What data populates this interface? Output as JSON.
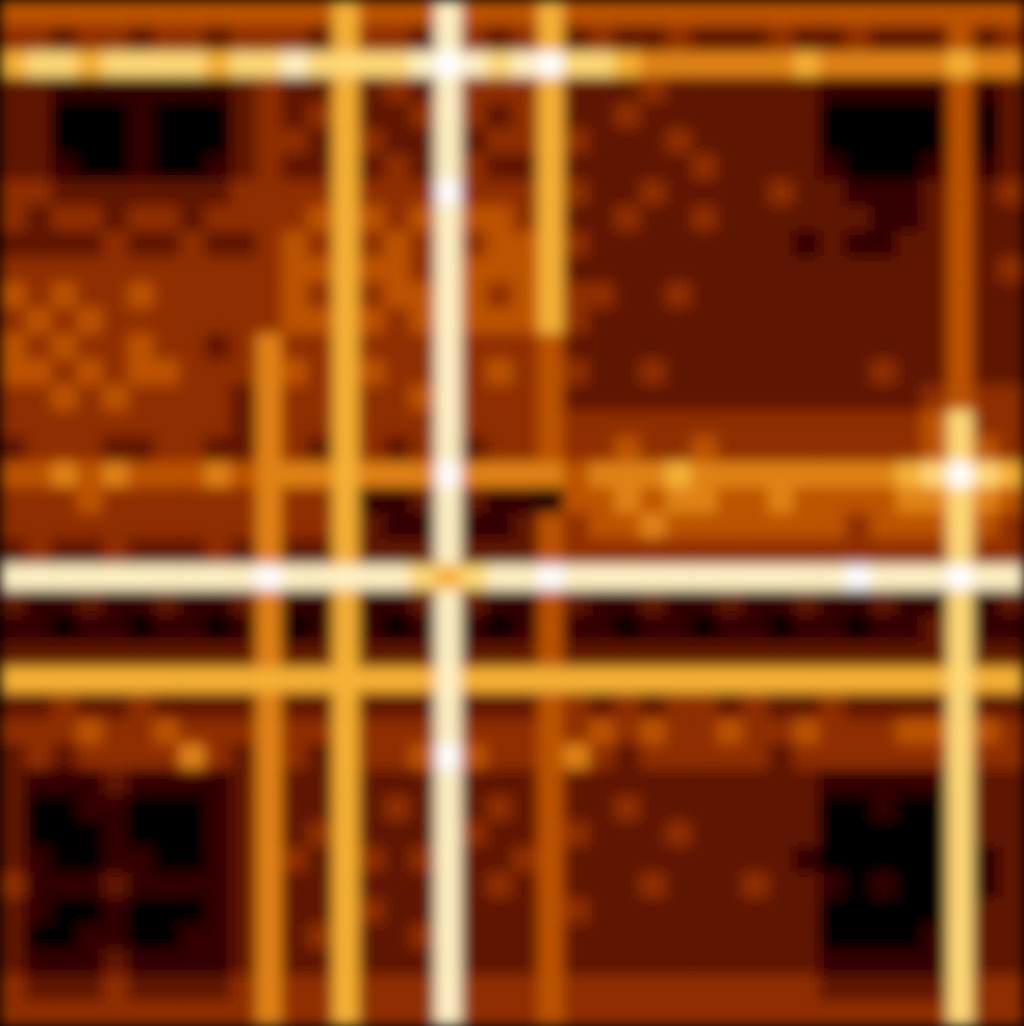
{
  "chart_data": {
    "type": "heatmap",
    "tick_labels": false,
    "cells": [
      [
        4,
        4,
        4,
        4,
        4,
        4,
        4,
        4,
        4,
        4,
        4,
        4,
        4,
        6,
        4,
        4,
        4,
        8,
        4,
        4,
        4,
        6,
        4,
        4,
        4,
        4,
        4,
        4,
        4,
        4,
        4,
        4,
        4,
        4,
        4,
        4,
        4,
        4,
        4,
        4
      ],
      [
        3,
        3,
        2,
        3,
        3,
        2,
        3,
        3,
        2,
        3,
        3,
        3,
        2,
        6,
        3,
        3,
        2,
        8,
        3,
        2,
        3,
        6,
        2,
        3,
        2,
        2,
        3,
        2,
        2,
        2,
        3,
        2,
        2,
        3,
        2,
        2,
        2,
        4,
        2,
        3
      ],
      [
        6,
        7,
        7,
        6,
        7,
        7,
        7,
        7,
        6,
        7,
        7,
        8,
        7,
        7,
        7,
        7,
        8,
        9,
        8,
        7,
        8,
        9,
        7,
        7,
        6,
        5,
        5,
        5,
        5,
        5,
        5,
        6,
        5,
        5,
        5,
        5,
        5,
        6,
        5,
        5
      ],
      [
        2,
        2,
        1,
        1,
        1,
        1,
        1,
        1,
        1,
        2,
        3,
        2,
        2,
        6,
        2,
        3,
        2,
        8,
        3,
        3,
        3,
        6,
        2,
        2,
        2,
        3,
        2,
        2,
        2,
        2,
        2,
        2,
        1,
        1,
        1,
        1,
        1,
        4,
        1,
        2
      ],
      [
        2,
        2,
        0,
        0,
        0,
        1,
        0,
        0,
        0,
        2,
        3,
        2,
        3,
        6,
        2,
        2,
        3,
        8,
        3,
        2,
        3,
        6,
        2,
        2,
        3,
        2,
        2,
        2,
        2,
        2,
        2,
        2,
        0,
        0,
        0,
        0,
        0,
        4,
        0,
        2
      ],
      [
        2,
        2,
        0,
        0,
        0,
        1,
        0,
        0,
        0,
        2,
        3,
        3,
        2,
        6,
        3,
        2,
        2,
        8,
        2,
        3,
        3,
        6,
        3,
        2,
        2,
        2,
        3,
        2,
        2,
        2,
        2,
        2,
        0,
        0,
        0,
        0,
        0,
        4,
        0,
        2
      ],
      [
        2,
        2,
        1,
        0,
        0,
        1,
        0,
        0,
        1,
        2,
        3,
        2,
        2,
        6,
        2,
        3,
        2,
        8,
        3,
        2,
        2,
        6,
        2,
        2,
        2,
        2,
        2,
        3,
        2,
        2,
        2,
        2,
        1,
        0,
        0,
        0,
        1,
        4,
        1,
        2
      ],
      [
        3,
        3,
        2,
        2,
        2,
        2,
        2,
        2,
        2,
        3,
        3,
        3,
        3,
        6,
        3,
        3,
        3,
        9,
        3,
        3,
        3,
        6,
        3,
        2,
        2,
        3,
        2,
        2,
        2,
        2,
        3,
        2,
        2,
        1,
        1,
        1,
        2,
        4,
        2,
        3
      ],
      [
        3,
        2,
        3,
        3,
        2,
        3,
        3,
        2,
        3,
        3,
        3,
        3,
        4,
        6,
        4,
        3,
        4,
        8,
        4,
        4,
        3,
        6,
        2,
        2,
        3,
        2,
        2,
        3,
        2,
        2,
        2,
        2,
        2,
        2,
        1,
        1,
        2,
        4,
        2,
        2
      ],
      [
        2,
        2,
        2,
        2,
        3,
        2,
        2,
        3,
        2,
        2,
        3,
        4,
        3,
        6,
        3,
        4,
        3,
        8,
        3,
        4,
        4,
        6,
        3,
        2,
        2,
        2,
        2,
        2,
        2,
        2,
        2,
        1,
        2,
        1,
        1,
        2,
        2,
        4,
        2,
        2
      ],
      [
        3,
        3,
        3,
        3,
        3,
        3,
        3,
        3,
        3,
        3,
        3,
        4,
        4,
        6,
        4,
        4,
        3,
        8,
        4,
        4,
        4,
        6,
        2,
        2,
        2,
        2,
        2,
        2,
        2,
        2,
        2,
        2,
        2,
        2,
        2,
        2,
        2,
        4,
        2,
        3
      ],
      [
        4,
        3,
        4,
        3,
        3,
        4,
        3,
        3,
        3,
        3,
        3,
        4,
        3,
        6,
        3,
        4,
        4,
        8,
        4,
        3,
        4,
        6,
        3,
        3,
        2,
        2,
        3,
        2,
        2,
        2,
        2,
        2,
        2,
        2,
        2,
        2,
        2,
        4,
        2,
        2
      ],
      [
        3,
        4,
        3,
        4,
        3,
        3,
        3,
        3,
        3,
        3,
        3,
        4,
        4,
        6,
        4,
        3,
        4,
        8,
        4,
        4,
        4,
        6,
        3,
        2,
        2,
        2,
        2,
        2,
        2,
        2,
        2,
        2,
        2,
        2,
        2,
        2,
        2,
        4,
        2,
        2
      ],
      [
        4,
        3,
        4,
        3,
        3,
        4,
        3,
        3,
        2,
        3,
        5,
        3,
        3,
        6,
        3,
        3,
        3,
        8,
        3,
        3,
        3,
        4,
        2,
        2,
        2,
        2,
        2,
        2,
        2,
        2,
        2,
        2,
        2,
        2,
        2,
        2,
        2,
        4,
        2,
        2
      ],
      [
        4,
        4,
        3,
        4,
        3,
        4,
        4,
        3,
        3,
        3,
        5,
        4,
        3,
        6,
        4,
        3,
        3,
        8,
        3,
        4,
        3,
        4,
        3,
        2,
        2,
        3,
        2,
        2,
        2,
        2,
        2,
        2,
        2,
        2,
        3,
        2,
        2,
        4,
        2,
        2
      ],
      [
        3,
        3,
        4,
        3,
        4,
        3,
        3,
        3,
        3,
        2,
        5,
        3,
        3,
        6,
        3,
        3,
        4,
        8,
        3,
        3,
        3,
        4,
        2,
        2,
        2,
        2,
        2,
        2,
        2,
        2,
        2,
        2,
        2,
        2,
        2,
        2,
        3,
        4,
        3,
        3
      ],
      [
        3,
        3,
        3,
        3,
        3,
        3,
        3,
        3,
        3,
        2,
        5,
        3,
        3,
        6,
        3,
        3,
        3,
        8,
        3,
        3,
        3,
        4,
        3,
        3,
        3,
        3,
        3,
        3,
        3,
        3,
        3,
        3,
        3,
        3,
        3,
        3,
        4,
        7,
        3,
        3
      ],
      [
        2,
        3,
        3,
        3,
        2,
        2,
        3,
        3,
        2,
        2,
        5,
        3,
        2,
        6,
        3,
        2,
        3,
        8,
        2,
        3,
        3,
        4,
        3,
        3,
        4,
        3,
        3,
        4,
        3,
        3,
        3,
        3,
        3,
        3,
        3,
        3,
        4,
        7,
        4,
        3
      ],
      [
        4,
        4,
        5,
        4,
        5,
        4,
        4,
        4,
        5,
        4,
        5,
        5,
        5,
        6,
        5,
        5,
        5,
        9,
        5,
        5,
        5,
        5,
        4,
        5,
        5,
        5,
        6,
        5,
        5,
        5,
        5,
        5,
        5,
        5,
        5,
        6,
        7,
        9,
        7,
        6
      ],
      [
        3,
        3,
        3,
        4,
        3,
        3,
        3,
        3,
        3,
        3,
        5,
        3,
        3,
        6,
        1,
        1,
        2,
        8,
        2,
        1,
        1,
        0,
        4,
        4,
        5,
        4,
        5,
        5,
        4,
        4,
        5,
        4,
        4,
        4,
        4,
        5,
        5,
        7,
        5,
        4
      ],
      [
        3,
        3,
        3,
        3,
        3,
        3,
        3,
        3,
        3,
        3,
        5,
        3,
        3,
        6,
        2,
        1,
        1,
        8,
        1,
        1,
        2,
        4,
        3,
        4,
        4,
        5,
        4,
        4,
        4,
        4,
        4,
        4,
        4,
        3,
        4,
        4,
        4,
        7,
        4,
        3
      ],
      [
        2,
        3,
        2,
        2,
        3,
        2,
        2,
        2,
        3,
        2,
        5,
        2,
        2,
        6,
        2,
        2,
        2,
        8,
        2,
        2,
        2,
        4,
        3,
        3,
        3,
        3,
        3,
        3,
        3,
        3,
        3,
        3,
        3,
        3,
        3,
        3,
        3,
        7,
        3,
        3
      ],
      [
        8,
        8,
        8,
        8,
        8,
        8,
        8,
        8,
        8,
        8,
        9,
        8,
        8,
        8,
        8,
        8,
        7,
        6,
        7,
        8,
        8,
        9,
        8,
        8,
        8,
        8,
        8,
        8,
        8,
        8,
        8,
        8,
        8,
        9,
        8,
        8,
        8,
        9,
        8,
        8
      ],
      [
        2,
        1,
        1,
        2,
        1,
        1,
        2,
        1,
        1,
        2,
        5,
        1,
        1,
        6,
        1,
        1,
        2,
        8,
        2,
        1,
        1,
        4,
        2,
        1,
        1,
        2,
        1,
        1,
        2,
        1,
        1,
        2,
        1,
        1,
        2,
        1,
        1,
        7,
        1,
        2
      ],
      [
        1,
        1,
        0,
        1,
        1,
        0,
        1,
        1,
        0,
        1,
        5,
        0,
        1,
        6,
        1,
        0,
        1,
        8,
        1,
        0,
        1,
        4,
        1,
        1,
        0,
        1,
        1,
        0,
        1,
        1,
        0,
        1,
        1,
        0,
        1,
        1,
        2,
        7,
        1,
        1
      ],
      [
        2,
        2,
        2,
        2,
        2,
        2,
        2,
        2,
        2,
        2,
        5,
        2,
        2,
        6,
        2,
        2,
        2,
        8,
        2,
        2,
        2,
        4,
        2,
        2,
        2,
        2,
        2,
        2,
        2,
        2,
        2,
        2,
        2,
        2,
        2,
        2,
        2,
        7,
        2,
        2
      ],
      [
        6,
        6,
        6,
        6,
        6,
        6,
        6,
        6,
        6,
        6,
        6,
        6,
        6,
        6,
        6,
        6,
        6,
        8,
        6,
        6,
        6,
        6,
        6,
        6,
        6,
        6,
        6,
        6,
        6,
        6,
        6,
        6,
        6,
        6,
        6,
        6,
        6,
        7,
        6,
        6
      ],
      [
        2,
        2,
        3,
        2,
        2,
        3,
        2,
        2,
        2,
        2,
        5,
        2,
        2,
        6,
        2,
        2,
        2,
        8,
        2,
        2,
        2,
        4,
        3,
        2,
        3,
        2,
        3,
        3,
        2,
        3,
        2,
        2,
        3,
        2,
        2,
        2,
        2,
        7,
        2,
        2
      ],
      [
        3,
        3,
        3,
        4,
        3,
        3,
        4,
        3,
        3,
        3,
        5,
        3,
        3,
        6,
        3,
        3,
        3,
        8,
        3,
        3,
        3,
        4,
        3,
        4,
        3,
        4,
        3,
        3,
        4,
        3,
        3,
        4,
        3,
        3,
        3,
        4,
        4,
        7,
        4,
        3
      ],
      [
        2,
        3,
        2,
        3,
        3,
        3,
        3,
        5,
        3,
        2,
        5,
        3,
        2,
        6,
        3,
        3,
        4,
        9,
        4,
        3,
        3,
        4,
        5,
        3,
        2,
        3,
        3,
        3,
        3,
        3,
        2,
        3,
        3,
        3,
        3,
        3,
        3,
        7,
        3,
        3
      ],
      [
        2,
        1,
        1,
        1,
        2,
        1,
        1,
        1,
        1,
        2,
        5,
        2,
        2,
        6,
        2,
        2,
        2,
        8,
        2,
        2,
        2,
        4,
        2,
        2,
        2,
        2,
        2,
        2,
        2,
        2,
        2,
        2,
        1,
        1,
        1,
        1,
        1,
        7,
        2,
        2
      ],
      [
        2,
        0,
        0,
        1,
        1,
        0,
        0,
        0,
        1,
        2,
        5,
        2,
        2,
        6,
        2,
        3,
        2,
        8,
        2,
        3,
        2,
        4,
        2,
        2,
        3,
        2,
        2,
        2,
        2,
        2,
        2,
        2,
        0,
        0,
        1,
        0,
        0,
        7,
        2,
        2
      ],
      [
        2,
        0,
        0,
        0,
        1,
        0,
        0,
        0,
        1,
        2,
        5,
        2,
        3,
        6,
        2,
        2,
        2,
        8,
        3,
        2,
        2,
        4,
        3,
        2,
        2,
        2,
        3,
        2,
        2,
        2,
        2,
        2,
        0,
        0,
        0,
        0,
        0,
        7,
        2,
        2
      ],
      [
        2,
        1,
        0,
        0,
        1,
        1,
        0,
        0,
        1,
        2,
        5,
        3,
        2,
        6,
        3,
        2,
        3,
        8,
        2,
        2,
        3,
        4,
        2,
        2,
        2,
        2,
        2,
        2,
        2,
        2,
        2,
        1,
        0,
        0,
        0,
        0,
        0,
        7,
        1,
        2
      ],
      [
        3,
        1,
        1,
        1,
        2,
        1,
        1,
        1,
        1,
        2,
        5,
        2,
        2,
        6,
        2,
        2,
        2,
        8,
        2,
        3,
        2,
        4,
        2,
        2,
        2,
        3,
        2,
        2,
        2,
        3,
        2,
        2,
        1,
        0,
        1,
        0,
        0,
        7,
        1,
        2
      ],
      [
        2,
        1,
        0,
        0,
        1,
        0,
        0,
        0,
        1,
        2,
        5,
        2,
        2,
        6,
        3,
        2,
        2,
        8,
        2,
        2,
        2,
        4,
        3,
        2,
        2,
        2,
        2,
        2,
        2,
        2,
        2,
        2,
        0,
        0,
        0,
        0,
        0,
        7,
        2,
        2
      ],
      [
        2,
        0,
        0,
        1,
        1,
        0,
        0,
        1,
        1,
        2,
        5,
        2,
        3,
        6,
        2,
        2,
        3,
        8,
        2,
        2,
        2,
        4,
        2,
        2,
        2,
        2,
        2,
        2,
        2,
        2,
        2,
        2,
        0,
        0,
        0,
        0,
        1,
        7,
        2,
        2
      ],
      [
        2,
        1,
        1,
        1,
        2,
        1,
        1,
        1,
        1,
        2,
        5,
        2,
        2,
        6,
        2,
        2,
        2,
        8,
        2,
        2,
        2,
        4,
        2,
        2,
        2,
        2,
        2,
        2,
        2,
        2,
        2,
        2,
        1,
        1,
        1,
        1,
        1,
        7,
        2,
        2
      ],
      [
        3,
        2,
        2,
        2,
        3,
        2,
        2,
        2,
        2,
        3,
        5,
        3,
        3,
        6,
        3,
        3,
        3,
        8,
        3,
        3,
        3,
        4,
        3,
        3,
        3,
        3,
        3,
        3,
        3,
        3,
        3,
        3,
        2,
        2,
        2,
        2,
        2,
        7,
        3,
        3
      ],
      [
        3,
        3,
        3,
        3,
        3,
        3,
        3,
        3,
        3,
        3,
        5,
        3,
        3,
        6,
        3,
        3,
        3,
        8,
        3,
        3,
        3,
        4,
        3,
        3,
        3,
        3,
        3,
        3,
        3,
        3,
        3,
        3,
        3,
        3,
        3,
        3,
        3,
        7,
        3,
        3
      ]
    ]
  }
}
